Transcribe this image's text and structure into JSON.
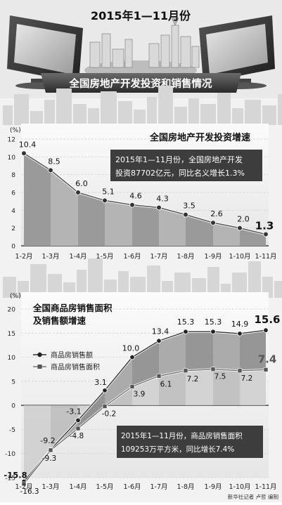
{
  "header": {
    "title": "2015年1—11月份",
    "subtitle": "全国房地产开发投资和销售情况"
  },
  "chart_data": [
    {
      "type": "line",
      "title": "全国房地产开发投资增速",
      "ylabel": "(%)",
      "ylim": [
        0,
        12
      ],
      "yticks": [
        0,
        2,
        4,
        6,
        8,
        10,
        12
      ],
      "categories": [
        "1-2月",
        "1-3月",
        "1-4月",
        "1-5月",
        "1-6月",
        "1-7月",
        "1-8月",
        "1-9月",
        "1-10月",
        "1-11月"
      ],
      "series": [
        {
          "values": [
            10.4,
            8.5,
            6.0,
            5.1,
            4.6,
            4.3,
            3.5,
            2.6,
            2.0,
            1.3
          ]
        }
      ],
      "labels": [
        "10.4",
        "8.5",
        "6.0",
        "5.1",
        "4.6",
        "4.3",
        "3.5",
        "2.6",
        "2.0",
        "1.3"
      ],
      "annotation": "2015年1—11月份，全国房地产开发投资87702亿元，同比名义增长1.3%"
    },
    {
      "type": "line",
      "title": "全国商品房销售面积及销售额增速",
      "ylabel": "(%)",
      "ylim": [
        -15,
        20
      ],
      "yticks": [
        -15,
        -10,
        -5,
        0,
        5,
        10,
        15,
        20
      ],
      "categories": [
        "1-2月",
        "1-3月",
        "1-4月",
        "1-5月",
        "1-6月",
        "1-7月",
        "1-8月",
        "1-9月",
        "1-10月",
        "1-11月"
      ],
      "series": [
        {
          "name": "商品房销售额",
          "marker": "circle",
          "values": [
            -15.8,
            -9.2,
            -3.1,
            3.1,
            10.0,
            13.4,
            15.3,
            15.3,
            14.9,
            15.6
          ],
          "labels": [
            "-15.8",
            "-9.2",
            "-3.1",
            "3.1",
            "10.0",
            "13.4",
            "15.3",
            "15.3",
            "14.9",
            "15.6"
          ]
        },
        {
          "name": "商品房销售面积",
          "marker": "square",
          "values": [
            -16.3,
            -9.3,
            -4.8,
            -0.2,
            3.9,
            6.1,
            7.2,
            7.5,
            7.2,
            7.4
          ],
          "labels": [
            "-16.3",
            "-9.3",
            "-4.8",
            "-0.2",
            "3.9",
            "6.1",
            "7.2",
            "7.5",
            "7.2",
            "7.4"
          ]
        }
      ],
      "annotation": "2015年1—11月份，商品房销售面积109253万平方米，同比增长7.4%"
    }
  ],
  "footer": {
    "credit": "新华社记者 卢哲 编制"
  },
  "colors": {
    "dark": "#3c3c3c",
    "mid": "#8a8a8a",
    "light": "#c8c8c8",
    "bg": "#f2f2f2"
  }
}
